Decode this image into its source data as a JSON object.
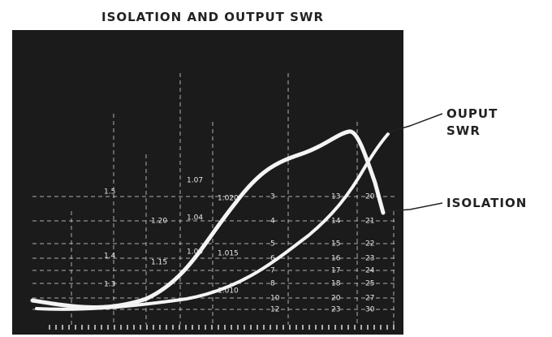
{
  "figure": {
    "title": "ISOLATION AND OUTPUT SWR",
    "annotations": {
      "output_swr": [
        "OUPUT",
        "SWR"
      ],
      "isolation": "ISOLATION"
    },
    "scale_columns": [
      {
        "labels": [
          "1.5",
          "1.4",
          "1.3"
        ]
      },
      {
        "labels": [
          "1.20",
          "1.15"
        ]
      },
      {
        "labels": [
          "1.07",
          "1.04",
          "1.00"
        ]
      },
      {
        "labels": [
          "1.020",
          "1.015",
          "1.010"
        ]
      },
      {
        "labels": [
          "3",
          "4",
          "5",
          "6",
          "7",
          "8",
          "10",
          "12"
        ]
      },
      {
        "labels": [
          "13",
          "14",
          "15",
          "16",
          "17",
          "18",
          "20",
          "23"
        ]
      },
      {
        "labels": [
          "20",
          "21",
          "22",
          "23",
          "24",
          "25",
          "27",
          "30"
        ]
      }
    ]
  }
}
